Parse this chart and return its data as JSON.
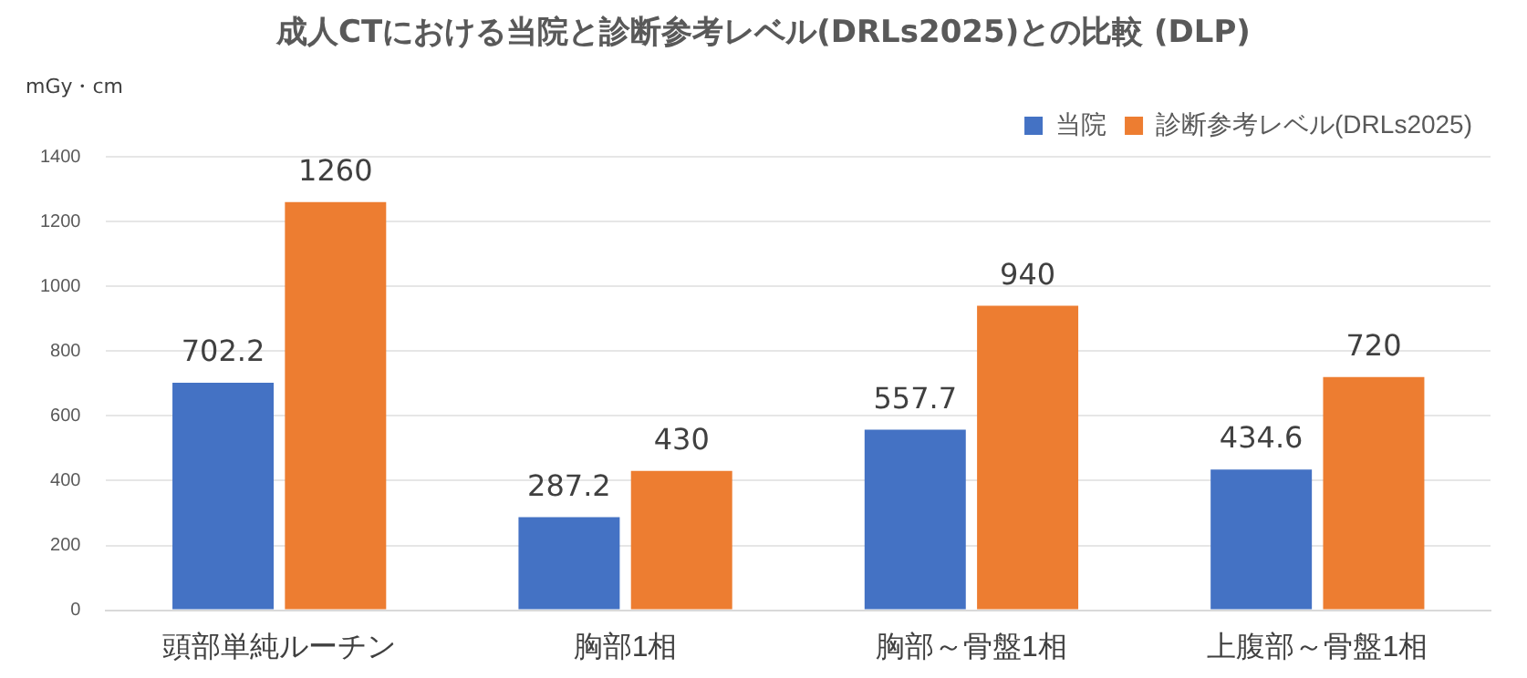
{
  "chart_data": {
    "type": "bar",
    "title": "成人CTにおける当院と診断参考レベル(DRLs2025)との比較 (DLP)",
    "ylabel": "mGy・cm",
    "categories": [
      "頭部単純ルーチン",
      "胸部1相",
      "胸部～骨盤1相",
      "上腹部～骨盤1相"
    ],
    "series": [
      {
        "name": "当院",
        "color": "#4472c4",
        "values": [
          702.2,
          287.2,
          557.7,
          434.6
        ]
      },
      {
        "name": "診断参考レベル(DRLs2025)",
        "color": "#ed7d31",
        "values": [
          1260,
          430,
          940,
          720
        ]
      }
    ],
    "ylim": [
      0,
      1400
    ],
    "yticks": [
      0,
      200,
      400,
      600,
      800,
      1000,
      1200,
      1400
    ],
    "grid": "y",
    "legend": "top right",
    "data_labels": true
  }
}
